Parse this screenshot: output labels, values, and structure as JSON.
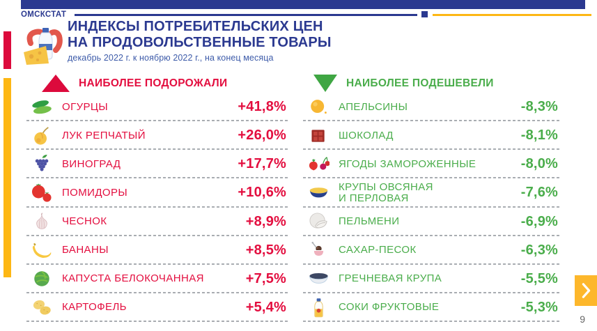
{
  "header": {
    "brand": "ОМСКСТАТ",
    "title_line1": "ИНДЕКСЫ ПОТРЕБИТЕЛЬСКИХ ЦЕН",
    "title_line2": "НА ПРОДОВОЛЬСТВЕННЫЕ ТОВАРЫ",
    "subtitle": "декабрь 2022 г. к ноябрю 2022 г., на конец месяца"
  },
  "colors": {
    "navy": "#2B3990",
    "red": "#E30E3F",
    "green": "#4AAD4B",
    "yellow": "#FDB714",
    "nav_button": "#FDB72B"
  },
  "columns": {
    "increased": {
      "heading": "НАИБОЛЕЕ ПОДОРОЖАЛИ",
      "direction_icon": "triangle-up-icon",
      "items": [
        {
          "label": "ОГУРЦЫ",
          "value": "+41,8%",
          "icon": "cucumbers-icon"
        },
        {
          "label": "ЛУК РЕПЧАТЫЙ",
          "value": "+26,0%",
          "icon": "onion-icon"
        },
        {
          "label": "ВИНОГРАД",
          "value": "+17,7%",
          "icon": "grapes-icon"
        },
        {
          "label": "ПОМИДОРЫ",
          "value": "+10,6%",
          "icon": "tomatoes-icon"
        },
        {
          "label": "ЧЕСНОК",
          "value": "+8,9%",
          "icon": "garlic-icon"
        },
        {
          "label": "БАНАНЫ",
          "value": "+8,5%",
          "icon": "banana-icon"
        },
        {
          "label": "КАПУСТА БЕЛОКОЧАННАЯ",
          "value": "+7,5%",
          "icon": "cabbage-icon"
        },
        {
          "label": "КАРТОФЕЛЬ",
          "value": "+5,4%",
          "icon": "potatoes-icon"
        }
      ]
    },
    "decreased": {
      "heading": "НАИБОЛЕЕ ПОДЕШЕВЕЛИ",
      "direction_icon": "triangle-down-icon",
      "items": [
        {
          "label": "АПЕЛЬСИНЫ",
          "value": "-8,3%",
          "icon": "orange-icon"
        },
        {
          "label": "ШОКОЛАД",
          "value": "-8,1%",
          "icon": "chocolate-icon"
        },
        {
          "label": "ЯГОДЫ ЗАМОРОЖЕННЫЕ",
          "value": "-8,0%",
          "icon": "frozen-berries-icon"
        },
        {
          "label": "КРУПЫ ОВСЯНАЯ\nИ ПЕРЛОВАЯ",
          "value": "-7,6%",
          "icon": "groats-bowl-icon"
        },
        {
          "label": "ПЕЛЬМЕНИ",
          "value": "-6,9%",
          "icon": "pelmeni-icon"
        },
        {
          "label": "САХАР-ПЕСОК",
          "value": "-6,3%",
          "icon": "sugar-bowl-icon"
        },
        {
          "label": "ГРЕЧНЕВАЯ КРУПА",
          "value": "-5,5%",
          "icon": "buckwheat-bowl-icon"
        },
        {
          "label": "СОКИ ФРУКТОВЫЕ",
          "value": "-5,3%",
          "icon": "juice-bottle-icon"
        }
      ]
    }
  },
  "nav": {
    "next_label": "›"
  },
  "footer": {
    "page_number": "9"
  },
  "chart_data": {
    "type": "table",
    "title": "ИНДЕКСЫ ПОТРЕБИТЕЛЬСКИХ ЦЕН НА ПРОДОВОЛЬСТВЕННЫЕ ТОВАРЫ",
    "subtitle": "декабрь 2022 г. к ноябрю 2022 г., на конец месяца",
    "series": [
      {
        "name": "НАИБОЛЕЕ ПОДОРОЖАЛИ",
        "categories": [
          "ОГУРЦЫ",
          "ЛУК РЕПЧАТЫЙ",
          "ВИНОГРАД",
          "ПОМИДОРЫ",
          "ЧЕСНОК",
          "БАНАНЫ",
          "КАПУСТА БЕЛОКОЧАННАЯ",
          "КАРТОФЕЛЬ"
        ],
        "values": [
          41.8,
          26.0,
          17.7,
          10.6,
          8.9,
          8.5,
          7.5,
          5.4
        ],
        "unit": "%"
      },
      {
        "name": "НАИБОЛЕЕ ПОДЕШЕВЕЛИ",
        "categories": [
          "АПЕЛЬСИНЫ",
          "ШОКОЛАД",
          "ЯГОДЫ ЗАМОРОЖЕННЫЕ",
          "КРУПЫ ОВСЯНАЯ И ПЕРЛОВАЯ",
          "ПЕЛЬМЕНИ",
          "САХАР-ПЕСОК",
          "ГРЕЧНЕВАЯ КРУПА",
          "СОКИ ФРУКТОВЫЕ"
        ],
        "values": [
          -8.3,
          -8.1,
          -8.0,
          -7.6,
          -6.9,
          -6.3,
          -5.5,
          -5.3
        ],
        "unit": "%"
      }
    ]
  }
}
